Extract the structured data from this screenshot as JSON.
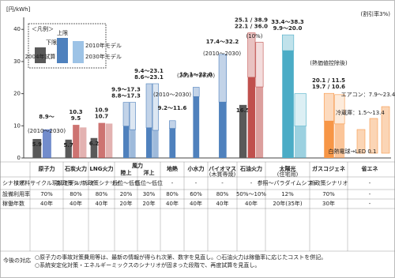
{
  "chart_data": {
    "type": "bar",
    "y_label": "[円/kWh]",
    "subtitle": "(割引率3%)",
    "categories": [
      "原子力",
      "石炭火力",
      "LNG火力",
      "陸上",
      "洋上",
      "地熱",
      "小水力",
      "バイオマス",
      "石油火力",
      "太陽光",
      "ガスコジェネ",
      "省エネ"
    ],
    "group_labels": [
      "風力",
      "(木質専焼)",
      "(住宅用)"
    ],
    "category_colors": [
      "#4f6fbf",
      "#c0504d",
      "#c0504d",
      "#4f81bd",
      "#4f81bd",
      "#4f81bd",
      "#4f81bd",
      "#4f81bd",
      "#c0504d",
      "#4bacc6",
      "#f79646",
      "#f79646"
    ],
    "ylim": [
      0,
      43
    ],
    "yticks": [
      0,
      10,
      20,
      30,
      40
    ],
    "legend_title": "＜凡例＞",
    "legend_range_labels": [
      "上限",
      "下限"
    ],
    "series": [
      {
        "name": "2004年試算",
        "color": "#595959",
        "values": [
          5.9,
          5.7,
          6.2,
          null,
          null,
          null,
          null,
          null,
          16.5,
          null,
          null,
          null
        ]
      },
      {
        "name": "2010年モデル",
        "color": "#4f81bd",
        "values": [
          8.9,
          10.3,
          10.9,
          17.3,
          23.1,
          11.6,
          22.0,
          32.2,
          38.9,
          38.3,
          20.1,
          null
        ],
        "low": [
          null,
          null,
          null,
          9.9,
          9.4,
          9.2,
          19.1,
          17.4,
          25.1,
          33.4,
          11.5,
          null
        ],
        "value_labels": [
          "8.9～",
          "10.3",
          "10.9",
          "9.9～17.3",
          "9.4～23.1",
          "9.2～11.6",
          "19.1～22.0",
          "17.4～32.2",
          "25.1 / 38.9",
          "33.4～38.3",
          "20.1 / 11.5",
          null
        ]
      },
      {
        "name": "2030年モデル",
        "color": "#9dc3e6",
        "values": [
          null,
          9.5,
          10.7,
          17.3,
          23.1,
          null,
          null,
          null,
          36.0,
          20.0,
          19.7,
          null
        ],
        "low": [
          null,
          null,
          null,
          8.8,
          8.6,
          null,
          null,
          null,
          22.1,
          9.9,
          10.6,
          null
        ],
        "value_labels": [
          null,
          "9.5",
          "10.7",
          "8.8～17.3",
          "8.6～23.1",
          null,
          null,
          null,
          "22.1 / 36.0",
          "9.9～20.0",
          "19.7 / 10.6",
          null
        ]
      }
    ],
    "annotations": [
      "(2010～2030)",
      "(2010～2030)",
      "(2010～2030)",
      "(2010～2030)",
      "(10%)",
      "(熱価値控除後)",
      "エアコン：7.9～23.4",
      "冷蔵庫：1.5～13.4",
      "白熱電球→LED 0.1"
    ]
  },
  "table": {
    "row_labels": [
      "シナリオ",
      "設備利用率",
      "稼働年数"
    ],
    "rows": [
      [
        "核燃料サイクル現状モデル",
        "新政策シナリオ",
        "新政策シナリオ",
        "低位～低位",
        "低位～低位",
        "-",
        "-",
        "-",
        "-",
        "参照～パラダイムシフト",
        "新政策シナリオ",
        "-"
      ],
      [
        "70%",
        "80%",
        "80%",
        "20%",
        "30%",
        "80%",
        "60%",
        "80%",
        "50%～10%",
        "12%",
        "70%",
        "-"
      ],
      [
        "40年",
        "40年",
        "40年",
        "20年",
        "20年",
        "40年",
        "40年",
        "40年",
        "40年",
        "20年(35年)",
        "30年",
        "-"
      ]
    ]
  },
  "footer": {
    "label": "今後の対応",
    "lines": [
      "○原子力の事故対策費用等は、最新の情報が得られ次第、数字を見直し。○石油火力は稼働率に応じたコストを併記。",
      "○系統安定化対策・エネルギーミックスのシナリオが固まった段階で、再度試算を見直し。"
    ]
  }
}
